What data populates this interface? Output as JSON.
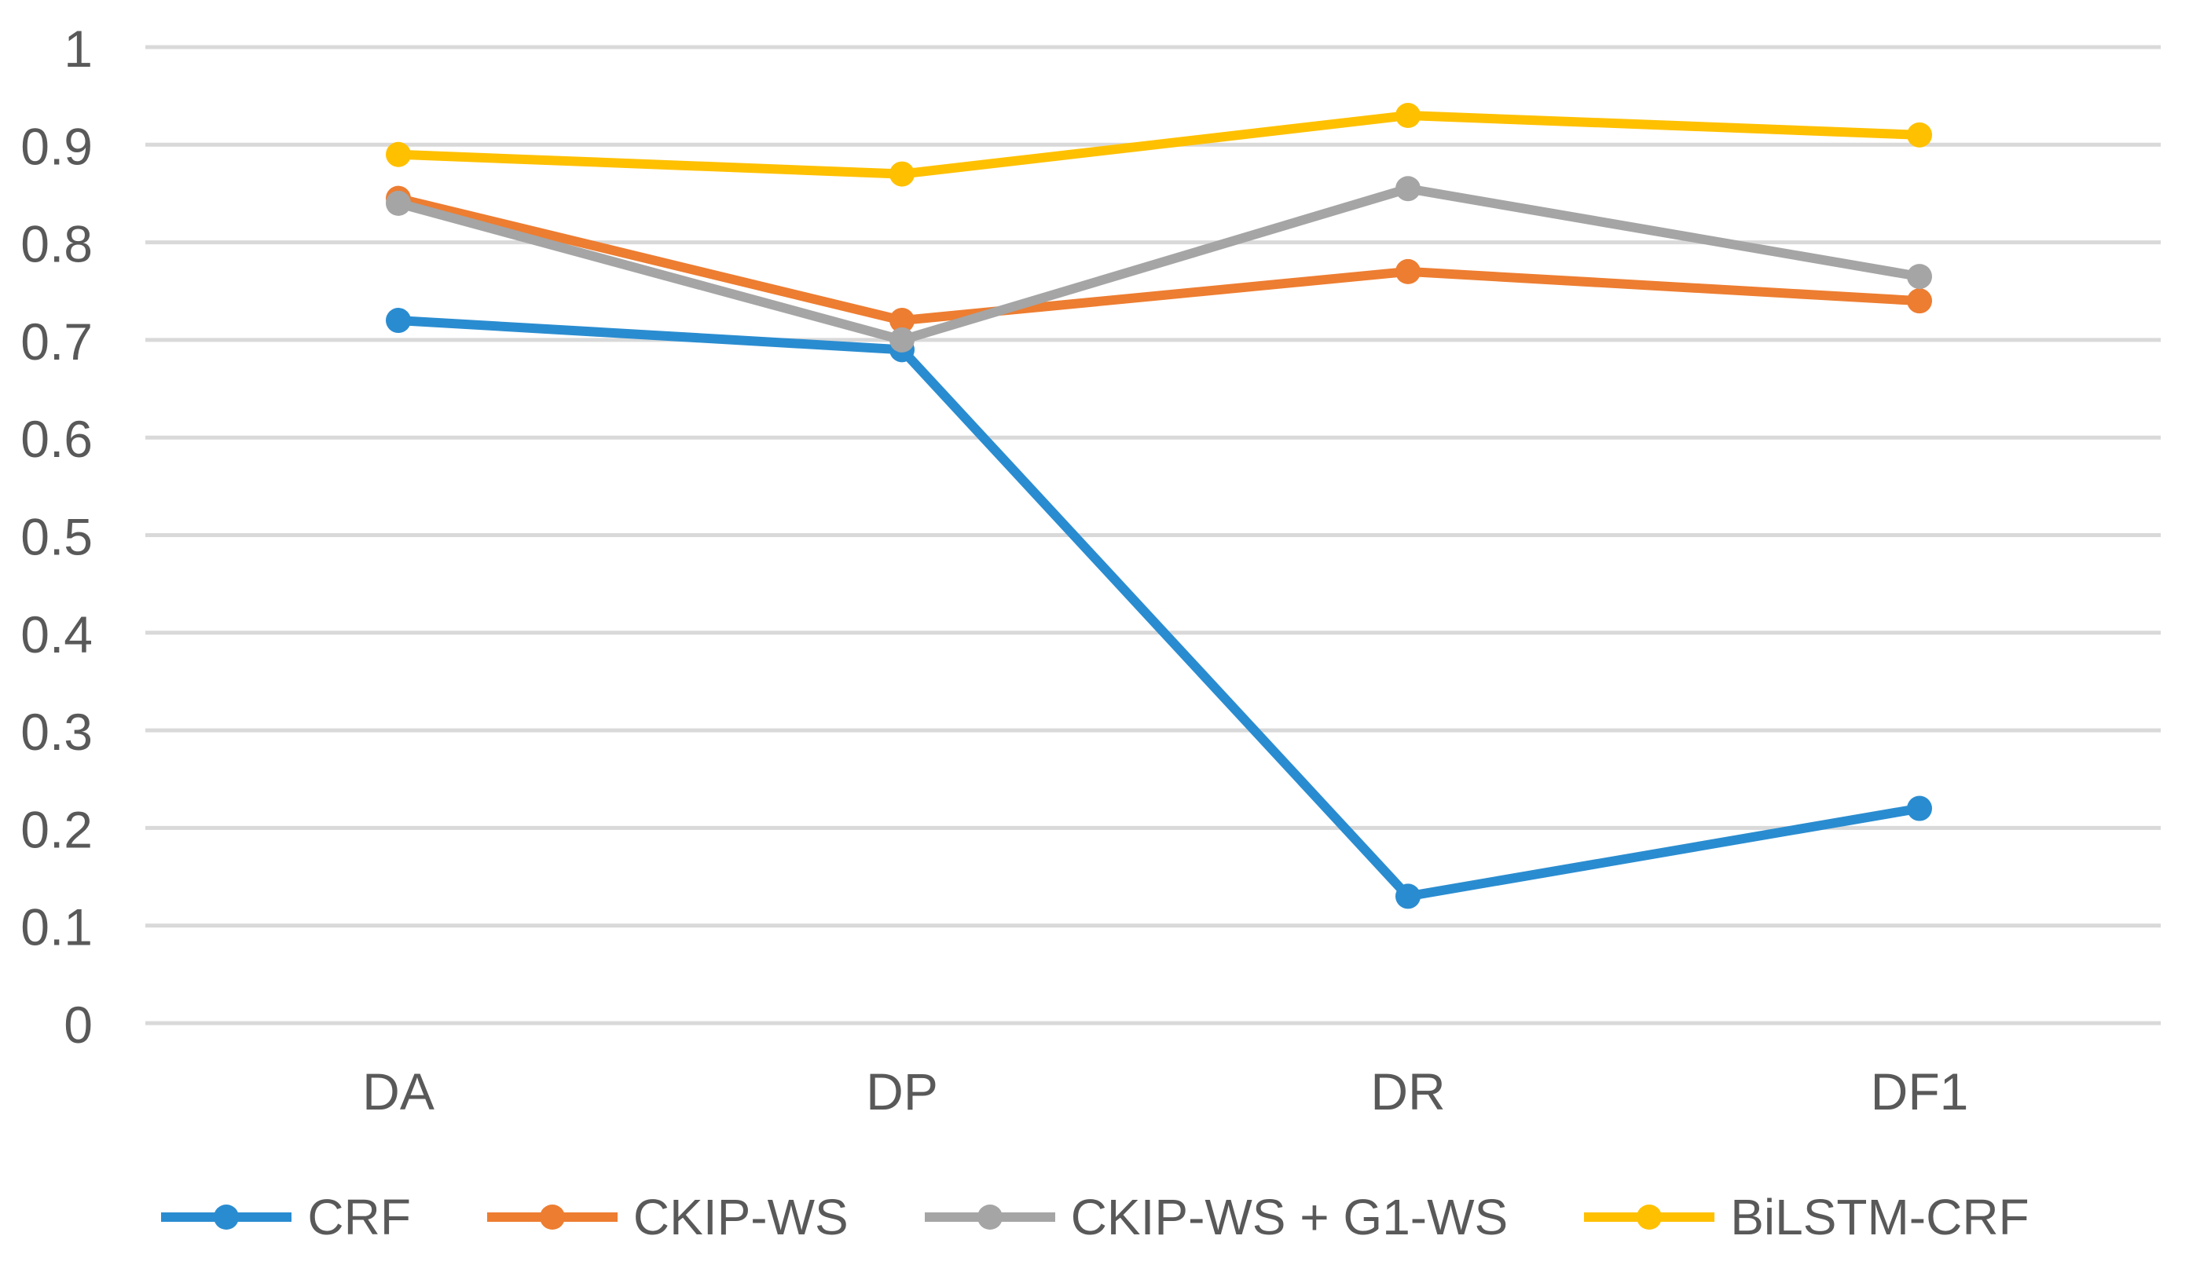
{
  "figure": {
    "background_color": "#ffffff"
  },
  "chart_data": {
    "type": "line",
    "title": "",
    "xlabel": "",
    "ylabel": "",
    "categories": [
      "DA",
      "DP",
      "DR",
      "DF1"
    ],
    "series": [
      {
        "name": "CRF",
        "color": "#2A8CD0",
        "values": [
          0.72,
          0.69,
          0.13,
          0.22
        ]
      },
      {
        "name": "CKIP-WS",
        "color": "#ED7D31",
        "values": [
          0.845,
          0.72,
          0.77,
          0.74
        ]
      },
      {
        "name": "CKIP-WS + G1-WS",
        "color": "#A5A5A5",
        "values": [
          0.84,
          0.7,
          0.855,
          0.765
        ]
      },
      {
        "name": "BiLSTM-CRF",
        "color": "#FFC000",
        "values": [
          0.89,
          0.87,
          0.93,
          0.91
        ]
      }
    ],
    "ylim": [
      0,
      1
    ],
    "ytick_labels": [
      "0",
      "0.1",
      "0.2",
      "0.3",
      "0.4",
      "0.5",
      "0.6",
      "0.7",
      "0.8",
      "0.9",
      "1"
    ],
    "grid": "horizontal",
    "gridline_color": "#D9D9D9",
    "tick_label_color": "#595959",
    "marker": "circle",
    "legend_position": "bottom"
  }
}
